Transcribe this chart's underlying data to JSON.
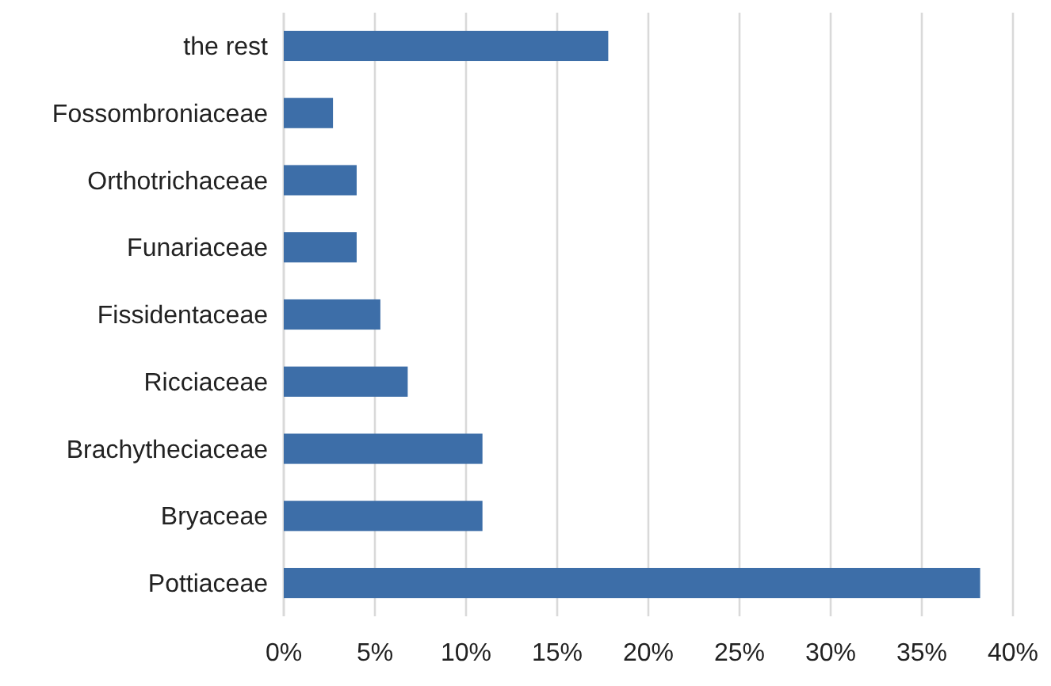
{
  "chart_data": {
    "type": "bar",
    "orientation": "horizontal",
    "categories": [
      "the rest",
      "Fossombroniaceae",
      "Orthotrichaceae",
      "Funariaceae",
      "Fissidentaceae",
      "Ricciaceae",
      "Brachytheciaceae",
      "Bryaceae",
      "Pottiaceae"
    ],
    "values": [
      0.178,
      0.027,
      0.04,
      0.04,
      0.053,
      0.068,
      0.109,
      0.109,
      0.382
    ],
    "color": "#3d6ea8",
    "xlim": [
      0,
      0.4
    ],
    "xticks": [
      {
        "value": 0,
        "label": "0%"
      },
      {
        "value": 0.05,
        "label": "5%"
      },
      {
        "value": 0.1,
        "label": "10%"
      },
      {
        "value": 0.15,
        "label": "15%"
      },
      {
        "value": 0.2,
        "label": "20%"
      },
      {
        "value": 0.25,
        "label": "25%"
      },
      {
        "value": 0.3,
        "label": "30%"
      },
      {
        "value": 0.35,
        "label": "35%"
      },
      {
        "value": 0.4,
        "label": "40%"
      }
    ],
    "grid": "x"
  }
}
